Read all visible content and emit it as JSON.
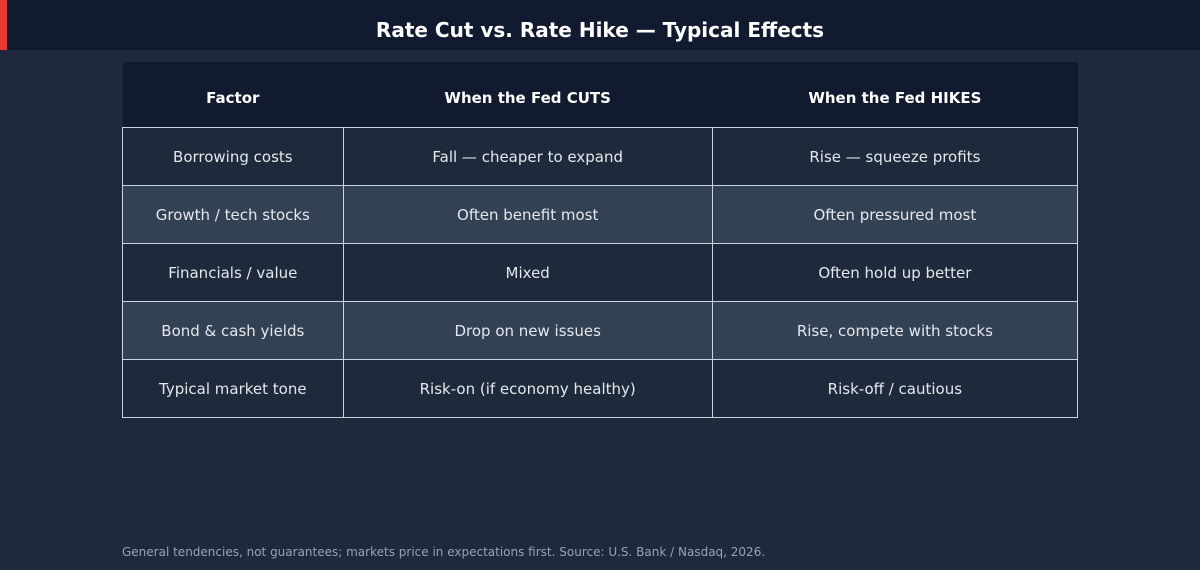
{
  "header": {
    "title": "Rate Cut vs. Rate Hike — Typical Effects"
  },
  "table": {
    "columns": [
      "Factor",
      "When the Fed CUTS",
      "When the Fed HIKES"
    ],
    "rows": [
      [
        "Borrowing costs",
        "Fall — cheaper to expand",
        "Rise — squeeze profits"
      ],
      [
        "Growth / tech stocks",
        "Often benefit most",
        "Often pressured most"
      ],
      [
        "Financials / value",
        "Mixed",
        "Often hold up better"
      ],
      [
        "Bond & cash yields",
        "Drop on new issues",
        "Rise, compete with stocks"
      ],
      [
        "Typical market tone",
        "Risk-on (if economy healthy)",
        "Risk-off / cautious"
      ]
    ]
  },
  "footnote": "General tendencies, not guarantees; markets price in expectations first. Source: U.S. Bank / Nasdaq, 2026."
}
